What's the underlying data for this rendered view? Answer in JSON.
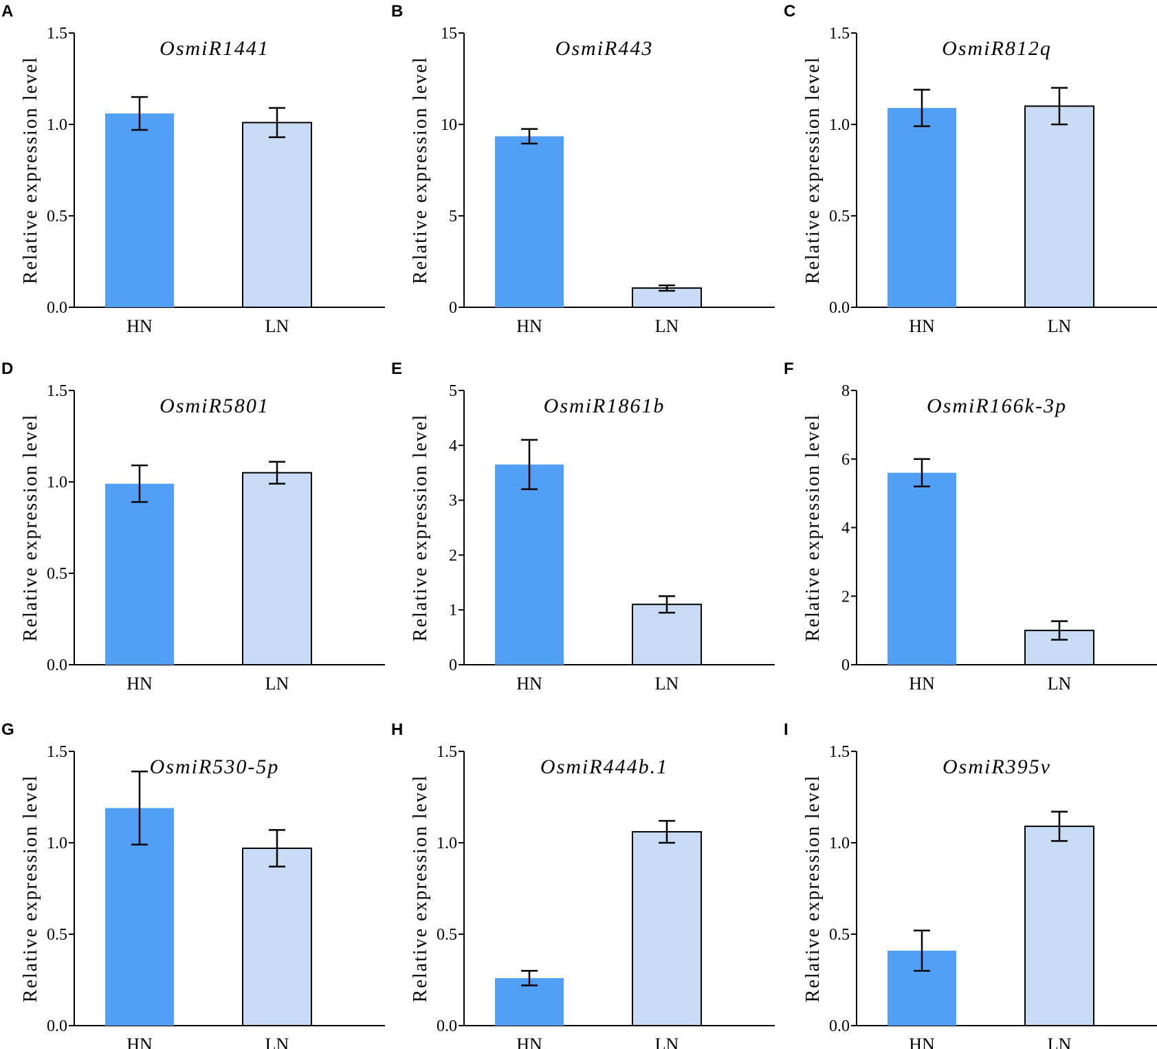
{
  "chart_data": [
    {
      "panel": "A",
      "type": "bar",
      "title": "OsmiR1441",
      "ylabel": "Relative expression level",
      "ylim": [
        0,
        1.5
      ],
      "yticks": [
        "0.0",
        "0.5",
        "1.0",
        "1.5"
      ],
      "categories": [
        "HN",
        "LN"
      ],
      "values": [
        1.06,
        1.01
      ],
      "errors": [
        0.09,
        0.08
      ],
      "colors": [
        "#529ff8",
        "#c8ddf5"
      ]
    },
    {
      "panel": "B",
      "type": "bar",
      "title": "OsmiR443",
      "ylabel": "Relative expression level",
      "ylim": [
        0,
        15
      ],
      "yticks": [
        "0",
        "5",
        "10",
        "15"
      ],
      "categories": [
        "HN",
        "LN"
      ],
      "values": [
        9.35,
        1.05
      ],
      "errors": [
        0.4,
        0.15
      ],
      "colors": [
        "#529ff8",
        "#c8ddf5"
      ]
    },
    {
      "panel": "C",
      "type": "bar",
      "title": "OsmiR812q",
      "ylabel": "Relative expression level",
      "ylim": [
        0,
        1.5
      ],
      "yticks": [
        "0.0",
        "0.5",
        "1.0",
        "1.5"
      ],
      "categories": [
        "HN",
        "LN"
      ],
      "values": [
        1.09,
        1.1
      ],
      "errors": [
        0.1,
        0.1
      ],
      "colors": [
        "#529ff8",
        "#c8ddf5"
      ]
    },
    {
      "panel": "D",
      "type": "bar",
      "title": "OsmiR5801",
      "ylabel": "Relative expression level",
      "ylim": [
        0,
        1.5
      ],
      "yticks": [
        "0.0",
        "0.5",
        "1.0",
        "1.5"
      ],
      "categories": [
        "HN",
        "LN"
      ],
      "values": [
        0.99,
        1.05
      ],
      "errors": [
        0.1,
        0.06
      ],
      "colors": [
        "#529ff8",
        "#c8ddf5"
      ]
    },
    {
      "panel": "E",
      "type": "bar",
      "title": "OsmiR1861b",
      "ylabel": "Relative expression level",
      "ylim": [
        0,
        5
      ],
      "yticks": [
        "0",
        "1",
        "2",
        "3",
        "4",
        "5"
      ],
      "categories": [
        "HN",
        "LN"
      ],
      "values": [
        3.65,
        1.1
      ],
      "errors": [
        0.45,
        0.15
      ],
      "colors": [
        "#529ff8",
        "#c8ddf5"
      ]
    },
    {
      "panel": "F",
      "type": "bar",
      "title": "OsmiR166k-3p",
      "ylabel": "Relative expression level",
      "ylim": [
        0,
        8
      ],
      "yticks": [
        "0",
        "2",
        "4",
        "6",
        "8"
      ],
      "categories": [
        "HN",
        "LN"
      ],
      "values": [
        5.6,
        1.0
      ],
      "errors": [
        0.4,
        0.27
      ],
      "colors": [
        "#529ff8",
        "#c8ddf5"
      ]
    },
    {
      "panel": "G",
      "type": "bar",
      "title": "OsmiR530-5p",
      "ylabel": "Relative expression level",
      "ylim": [
        0,
        1.5
      ],
      "yticks": [
        "0.0",
        "0.5",
        "1.0",
        "1.5"
      ],
      "categories": [
        "HN",
        "LN"
      ],
      "values": [
        1.19,
        0.97
      ],
      "errors": [
        0.2,
        0.1
      ],
      "colors": [
        "#529ff8",
        "#c8ddf5"
      ]
    },
    {
      "panel": "H",
      "type": "bar",
      "title": "OsmiR444b.1",
      "ylabel": "Relative expression level",
      "ylim": [
        0,
        1.5
      ],
      "yticks": [
        "0.0",
        "0.5",
        "1.0",
        "1.5"
      ],
      "categories": [
        "HN",
        "LN"
      ],
      "values": [
        0.26,
        1.06
      ],
      "errors": [
        0.04,
        0.06
      ],
      "colors": [
        "#529ff8",
        "#c8ddf5"
      ]
    },
    {
      "panel": "I",
      "type": "bar",
      "title": "OsmiR395v",
      "ylabel": "Relative expression level",
      "ylim": [
        0,
        1.5
      ],
      "yticks": [
        "0.0",
        "0.5",
        "1.0",
        "1.5"
      ],
      "categories": [
        "HN",
        "LN"
      ],
      "values": [
        0.41,
        1.09
      ],
      "errors": [
        0.11,
        0.08
      ],
      "colors": [
        "#529ff8",
        "#c8ddf5"
      ]
    }
  ]
}
